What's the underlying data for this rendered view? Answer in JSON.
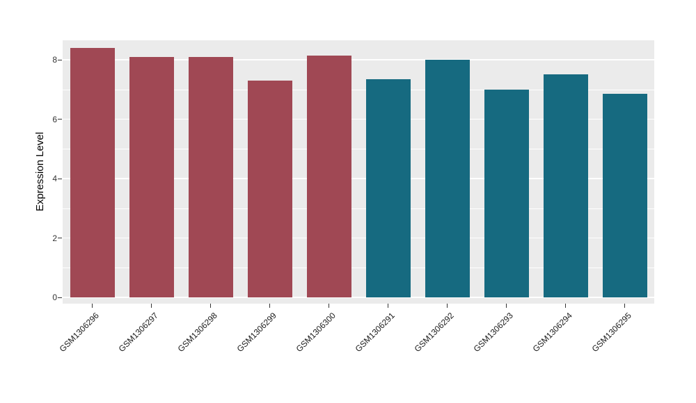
{
  "chart": {
    "panel_bg": "#EBEBEB",
    "grid_color": "#FFFFFF",
    "tick_color": "#333333",
    "text_color": "#1A1A1A"
  },
  "chart_data": {
    "type": "bar",
    "title": "",
    "xlabel": "",
    "ylabel": "Expression Level",
    "categories": [
      "GSM1306296",
      "GSM1306297",
      "GSM1306298",
      "GSM1306299",
      "GSM1306300",
      "GSM1306291",
      "GSM1306292",
      "GSM1306293",
      "GSM1306294",
      "GSM1306295"
    ],
    "values": [
      8.4,
      8.1,
      8.1,
      7.3,
      8.15,
      7.35,
      8.0,
      7.0,
      7.5,
      6.85
    ],
    "bar_colors": [
      "#A04854",
      "#A04854",
      "#A04854",
      "#A04854",
      "#A04854",
      "#166A80",
      "#166A80",
      "#166A80",
      "#166A80",
      "#166A80"
    ],
    "group_colors": {
      "left_group": "#A04854",
      "right_group": "#166A80"
    },
    "ylim": [
      0,
      8.65
    ],
    "yticks": [
      0,
      2,
      4,
      6,
      8
    ],
    "yticks_minor": [
      1,
      3,
      5,
      7
    ],
    "grid": true,
    "legend": "none"
  }
}
